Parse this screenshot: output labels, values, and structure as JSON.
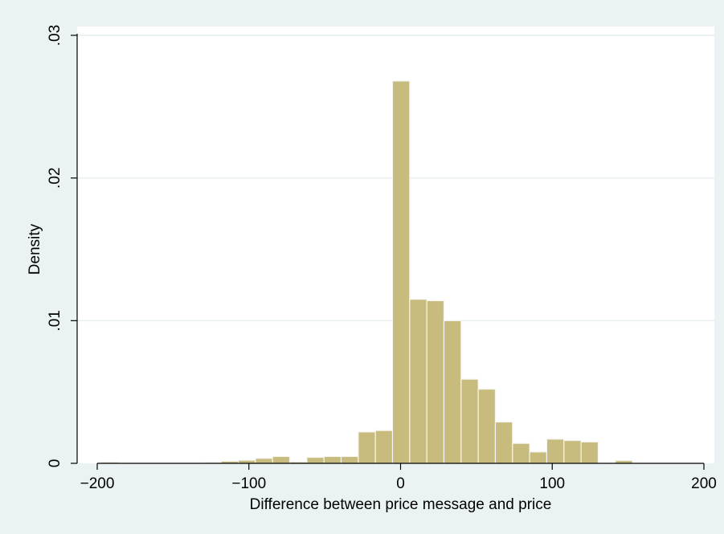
{
  "chart_data": {
    "type": "bar",
    "title": "",
    "xlabel": "Difference between price message and price",
    "ylabel": "Density",
    "xlim": [
      -200,
      200
    ],
    "ylim": [
      0,
      0.03
    ],
    "x_ticks": [
      -200,
      -100,
      0,
      100,
      200
    ],
    "x_tick_labels": [
      "−200",
      "−100",
      "0",
      "100",
      "200"
    ],
    "y_ticks": [
      0,
      0.01,
      0.02,
      0.03
    ],
    "y_tick_labels": [
      "0",
      ".01",
      ".02",
      ".03"
    ],
    "grid": true,
    "legend": "none",
    "bin_width": 11.3,
    "bins": [
      {
        "start": -197.4,
        "value": 8e-05
      },
      {
        "start": -186.1,
        "value": 0.0
      },
      {
        "start": -174.8,
        "value": 0.0
      },
      {
        "start": -163.5,
        "value": 0.0
      },
      {
        "start": -152.2,
        "value": 0.0
      },
      {
        "start": -140.9,
        "value": 0.0
      },
      {
        "start": -129.6,
        "value": 6e-05
      },
      {
        "start": -118.3,
        "value": 0.00015
      },
      {
        "start": -107.0,
        "value": 0.00022
      },
      {
        "start": -95.7,
        "value": 0.00035
      },
      {
        "start": -84.4,
        "value": 0.00048
      },
      {
        "start": -73.1,
        "value": 0.0001
      },
      {
        "start": -61.8,
        "value": 0.00042
      },
      {
        "start": -50.5,
        "value": 0.00048
      },
      {
        "start": -39.2,
        "value": 0.00048
      },
      {
        "start": -27.9,
        "value": 0.0022
      },
      {
        "start": -16.6,
        "value": 0.0023
      },
      {
        "start": -5.3,
        "value": 0.0268
      },
      {
        "start": 6.0,
        "value": 0.0115
      },
      {
        "start": 17.3,
        "value": 0.0114
      },
      {
        "start": 28.6,
        "value": 0.01
      },
      {
        "start": 39.9,
        "value": 0.0059
      },
      {
        "start": 51.2,
        "value": 0.0052
      },
      {
        "start": 62.5,
        "value": 0.0029
      },
      {
        "start": 73.8,
        "value": 0.0014
      },
      {
        "start": 85.1,
        "value": 0.0008
      },
      {
        "start": 96.4,
        "value": 0.0017
      },
      {
        "start": 107.7,
        "value": 0.0016
      },
      {
        "start": 119.0,
        "value": 0.0015
      },
      {
        "start": 130.3,
        "value": 0.0
      },
      {
        "start": 141.6,
        "value": 0.0002
      }
    ],
    "colors": {
      "bar_fill": "#c8bb7e",
      "bar_stroke": "#f5f5f0",
      "plot_bg": "#ffffff",
      "outer_bg": "#eaf2f3",
      "grid": "#e6eef0",
      "axis": "#000000"
    }
  }
}
